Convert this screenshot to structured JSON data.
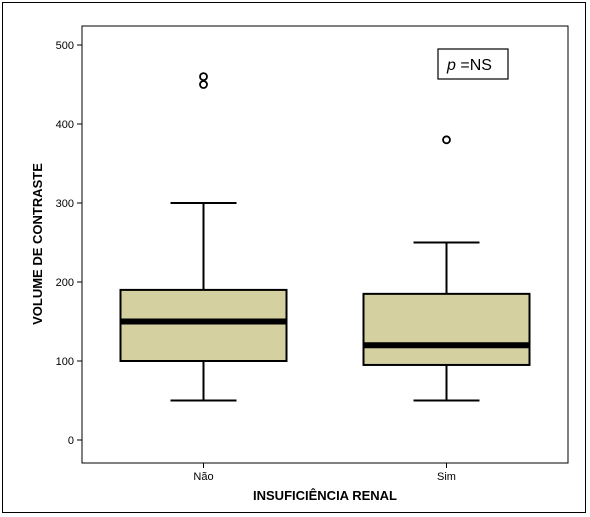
{
  "chart_data": {
    "type": "boxplot",
    "xlabel": "INSUFICIÊNCIA RENAL",
    "ylabel": "VOLUME DE CONTRASTE",
    "ylim": [
      -25,
      515
    ],
    "yticks": [
      0,
      100,
      200,
      300,
      400,
      500
    ],
    "categories": [
      "Não",
      "Sim"
    ],
    "boxes": [
      {
        "category": "Não",
        "whisker_low": 50,
        "q1": 100,
        "median": 150,
        "q3": 190,
        "whisker_high": 300,
        "outliers": [
          450,
          460
        ]
      },
      {
        "category": "Sim",
        "whisker_low": 50,
        "q1": 95,
        "median": 120,
        "q3": 185,
        "whisker_high": 250,
        "outliers": [
          380
        ]
      }
    ],
    "annotation": {
      "italic": "p",
      "text": " =NS"
    },
    "colors": {
      "box_fill": "#d4d0a0",
      "stroke": "#000000"
    }
  }
}
